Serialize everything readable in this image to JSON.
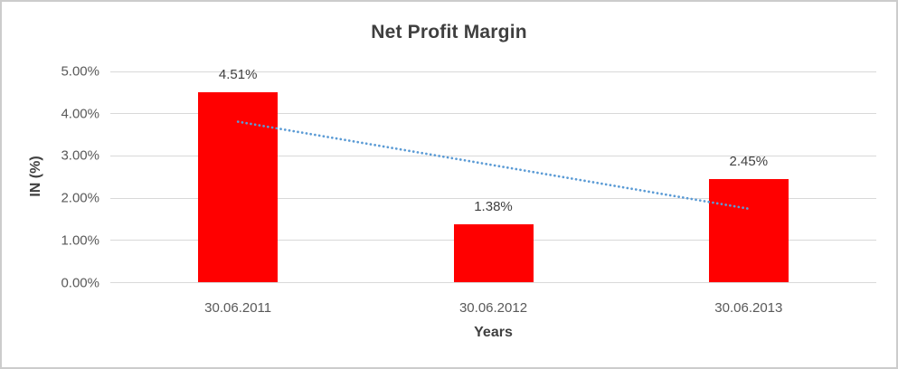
{
  "chart_data": {
    "type": "bar",
    "title": "Net Profit Margin",
    "xlabel": "Years",
    "ylabel": "IN (%)",
    "categories": [
      "30.06.2011",
      "30.06.2012",
      "30.06.2013"
    ],
    "values": [
      4.51,
      1.38,
      2.45
    ],
    "data_labels": [
      "4.51%",
      "1.38%",
      "2.45%"
    ],
    "y_ticks": [
      {
        "value": 0,
        "label": "0.00%"
      },
      {
        "value": 1,
        "label": "1.00%"
      },
      {
        "value": 2,
        "label": "2.00%"
      },
      {
        "value": 3,
        "label": "3.00%"
      },
      {
        "value": 4,
        "label": "4.00%"
      },
      {
        "value": 5,
        "label": "5.00%"
      }
    ],
    "ylim": [
      0,
      5
    ],
    "grid": true,
    "legend_position": "none",
    "bar_color": "#FF0000",
    "trendline": {
      "type": "linear",
      "style": "dotted",
      "color": "#5B9BD5",
      "start_value": 3.81,
      "end_value": 1.75,
      "spans_categories": [
        1,
        3
      ]
    },
    "colors": {
      "title": "#3F3F3F",
      "axis_labels": "#595959",
      "data_labels": "#404040",
      "gridline": "#D9D9D9",
      "background": "#FFFFFF",
      "border": "#CCCCCC"
    }
  }
}
